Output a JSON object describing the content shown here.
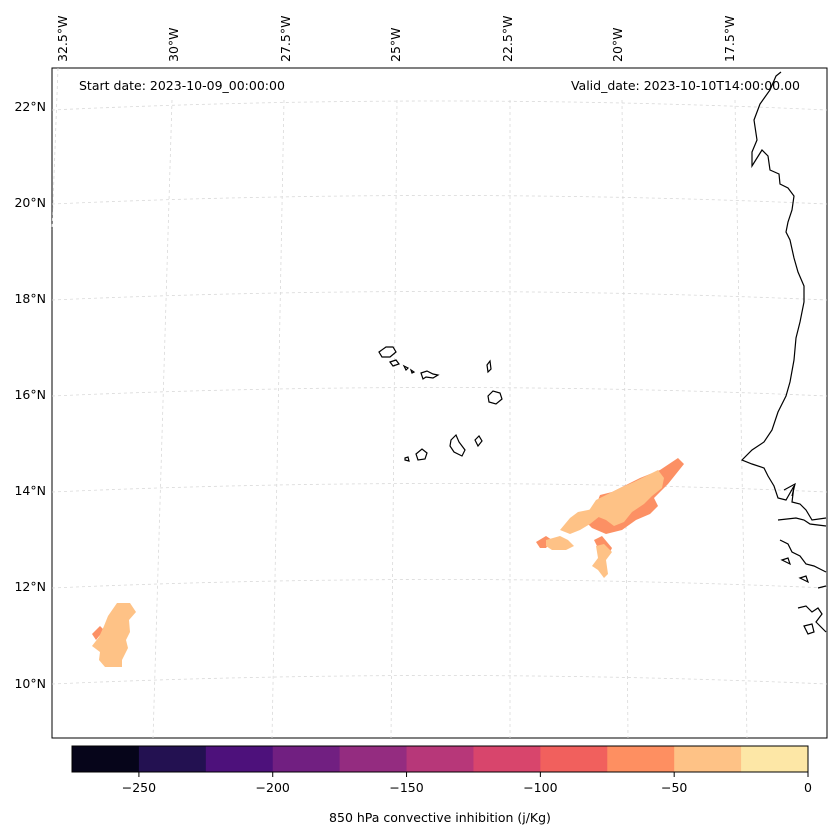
{
  "annotations": {
    "start": "Start date: 2023-10-09_00:00:00",
    "valid": "Valid_date: 2023-10-10T14:00:00.00"
  },
  "lon_labels": [
    "32.5°W",
    "30°W",
    "27.5°W",
    "25°W",
    "22.5°W",
    "20°W",
    "17.5°W"
  ],
  "lat_labels": [
    "22°N",
    "20°N",
    "18°N",
    "16°N",
    "14°N",
    "12°N",
    "10°N"
  ],
  "colorbar": {
    "label": "850 hPa convective inhibition (j/Kg)",
    "ticks": [
      "−250",
      "−200",
      "−150",
      "−100",
      "−50",
      "0"
    ],
    "bins": [
      -275,
      -250,
      -225,
      -200,
      -175,
      -150,
      -125,
      -100,
      -75,
      -50,
      -25,
      0
    ],
    "colors": [
      "#06051a",
      "#231151",
      "#4d117b",
      "#711f81",
      "#942c80",
      "#b73779",
      "#d8456c",
      "#f1605d",
      "#fe8f61",
      "#fec286",
      "#fde7a6"
    ]
  },
  "colors": {
    "cin_low": "#fec286",
    "cin_mid": "#fc9064",
    "coastline": "#000000",
    "grid": "#cccccc"
  }
}
